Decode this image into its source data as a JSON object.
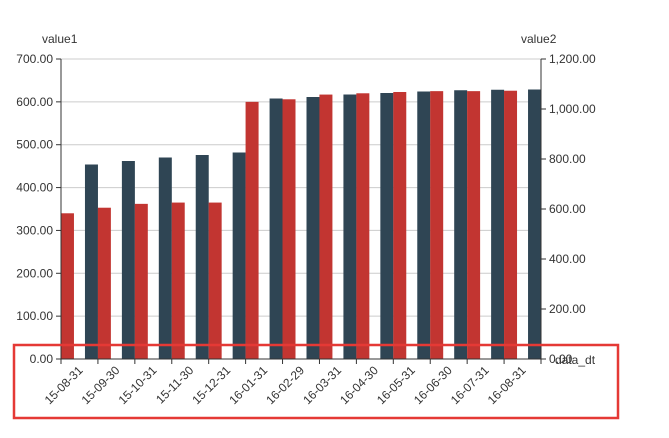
{
  "chart_data": {
    "type": "bar",
    "title": "",
    "xlabel": "data_dt",
    "categories": [
      "2015-08-31",
      "2015-09-30",
      "2015-10-31",
      "2015-11-30",
      "2015-12-31",
      "2016-01-31",
      "2016-02-29",
      "2016-03-31",
      "2016-04-30",
      "2016-05-31",
      "2016-06-30",
      "2016-07-31",
      "2016-08-31"
    ],
    "category_labels": [
      "15-08-31",
      "15-09-30",
      "15-10-31",
      "15-11-30",
      "15-12-31",
      "16-01-31",
      "16-02-29",
      "16-03-31",
      "16-04-30",
      "16-05-31",
      "16-06-30",
      "16-07-31",
      "16-08-31"
    ],
    "y_left": {
      "label": "value1",
      "ylim": [
        0,
        700
      ],
      "ticks": [
        "0.00",
        "100.00",
        "200.00",
        "300.00",
        "400.00",
        "500.00",
        "600.00",
        "700.00"
      ]
    },
    "y_right": {
      "label": "value2",
      "ylim": [
        0,
        1200
      ],
      "ticks": [
        "0.00",
        "200.00",
        "400.00",
        "600.00",
        "800.00",
        "1,000.00",
        "1,200.00"
      ]
    },
    "series": [
      {
        "axis": "left",
        "color": "#c23531",
        "values": [
          340,
          353,
          362,
          365,
          365,
          600,
          606,
          617,
          620,
          623,
          625,
          625,
          626
        ]
      },
      {
        "axis": "right",
        "color": "#2f4554",
        "values": [
          778,
          792,
          806,
          816,
          826,
          1042,
          1048,
          1058,
          1064,
          1070,
          1075,
          1077,
          1078
        ]
      }
    ],
    "grid": true,
    "annotations": [
      {
        "type": "highlight-box",
        "target": "x-axis-labels",
        "color": "#e53935"
      }
    ]
  }
}
